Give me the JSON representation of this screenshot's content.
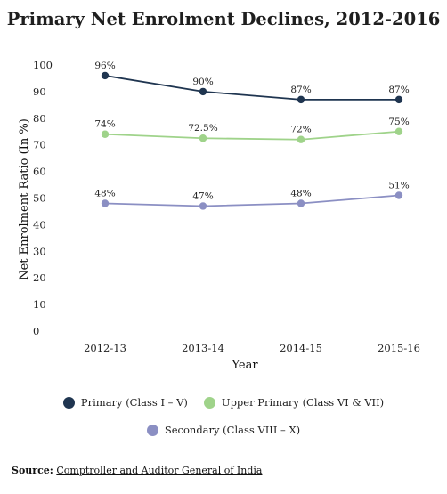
{
  "chart_data": {
    "type": "line",
    "title": "Primary Net Enrolment Declines, 2012-2016",
    "xlabel": "Year",
    "ylabel": "Net Enrolment Ratio (In %)",
    "categories": [
      "2012-13",
      "2013-14",
      "2014-15",
      "2015-16"
    ],
    "ylim": [
      0,
      100
    ],
    "yticks": [
      "0",
      "10",
      "20",
      "30",
      "40",
      "50",
      "60",
      "70",
      "80",
      "90",
      "100"
    ],
    "grid": false,
    "legend_position": "bottom",
    "series": [
      {
        "name": "Primary (Class I – V)",
        "color": "#1f3550",
        "values": [
          96,
          90,
          87,
          87
        ],
        "labels": [
          "96%",
          "90%",
          "87%",
          "87%"
        ]
      },
      {
        "name": "Upper Primary (Class VI & VII)",
        "color": "#9fd38a",
        "values": [
          74,
          72.5,
          72,
          75
        ],
        "labels": [
          "74%",
          "72.5%",
          "72%",
          "75%"
        ]
      },
      {
        "name": "Secondary (Class VIII – X)",
        "color": "#8b8fc3",
        "values": [
          48,
          47,
          48,
          51
        ],
        "labels": [
          "48%",
          "47%",
          "48%",
          "51%"
        ]
      }
    ]
  },
  "source": {
    "prefix": "Source:",
    "text": "Comptroller and Auditor General of India"
  }
}
